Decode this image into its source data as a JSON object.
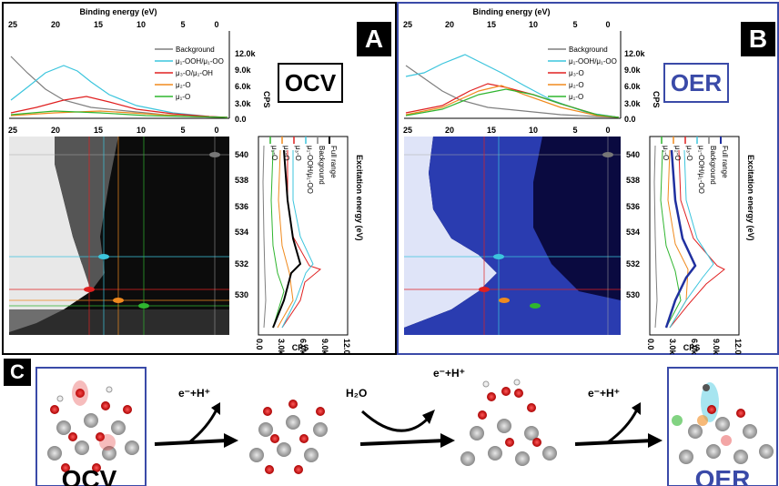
{
  "panelA": {
    "letter": "A",
    "label": "OCV",
    "legend": [
      "Background",
      "μ₁-OOH/μ₁-OO",
      "μ₃-O/μ₁-OH",
      "μ₂-O",
      "μ₁-O"
    ],
    "side_legend": [
      "μ₁-O",
      "μ₂-O",
      "μ₃-O",
      "μ₁-OOH/μ₁-OO",
      "Background",
      "Full range"
    ]
  },
  "panelB": {
    "letter": "B",
    "label": "OER",
    "legend": [
      "Background",
      "μ₁-OOH/μ₁-OO",
      "μ₃-O",
      "μ₂-O",
      "μ₁-O"
    ],
    "side_legend": [
      "μ₁-O",
      "μ₂-O",
      "μ₃-O",
      "μ₁-OOH/μ₁-OO",
      "Background",
      "Full range"
    ]
  },
  "axes": {
    "top_title": "Binding energy (eV)",
    "top_ticks": [
      "25",
      "20",
      "15",
      "10",
      "5",
      "0"
    ],
    "cps_label": "CPS",
    "cps_ticks_A": [
      "12.0k",
      "9.0k",
      "6.0k",
      "3.0k",
      "0.0"
    ],
    "cps_ticks_B": [
      "12.0k",
      "9.0k",
      "6.0k",
      "3.0k",
      "0.0"
    ],
    "mid_ticks": [
      "25",
      "20",
      "15",
      "10",
      "5",
      "0"
    ],
    "exc_label": "Excitation energy (eV)",
    "exc_ticks": [
      "540",
      "538",
      "536",
      "534",
      "532",
      "530"
    ],
    "bottom_ticks": [
      "0.0",
      "3.0k",
      "6.0k",
      "9.0k",
      "12.0k"
    ]
  },
  "panelC": {
    "letter": "C",
    "step1": "e⁻+H⁺",
    "step2": "H₂O",
    "step3": "e⁻+H⁺",
    "step4": "e⁻+H⁺",
    "left_label": "OCV",
    "right_label": "OER"
  },
  "colors": {
    "background": "#7f7f7f",
    "ooh": "#3cc5dd",
    "mu3": "#e02020",
    "mu2": "#f08a1e",
    "mu1": "#2fb52f",
    "full": "#000000",
    "full_oer": "#2030a0",
    "frame_oer": "#3040a0"
  }
}
